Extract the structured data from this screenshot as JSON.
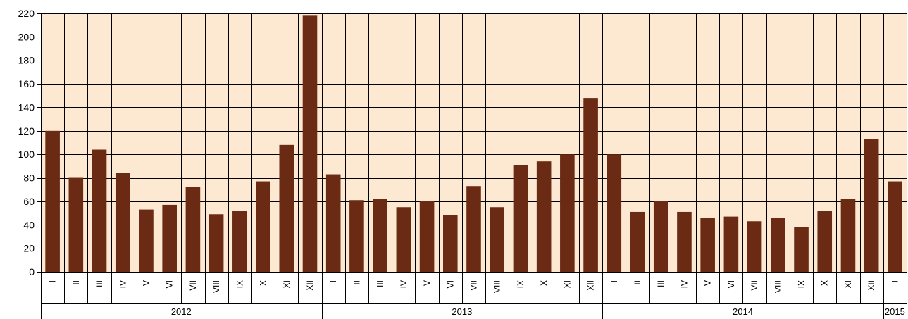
{
  "chart_data": {
    "type": "bar",
    "title": "",
    "xlabel": "",
    "ylabel": "",
    "ylim": [
      0,
      220
    ],
    "yticks": [
      0,
      20,
      40,
      60,
      80,
      100,
      120,
      140,
      160,
      180,
      200,
      220
    ],
    "grid": true,
    "legend": "none",
    "colors": {
      "plot_background": "#fde9d2",
      "bar": "#6b2a14",
      "grid": "#000000"
    },
    "categories": [
      "I",
      "II",
      "III",
      "IV",
      "V",
      "VI",
      "VII",
      "VIII",
      "IX",
      "X",
      "XI",
      "XII",
      "I",
      "II",
      "III",
      "IV",
      "V",
      "VI",
      "VII",
      "VIII",
      "IX",
      "X",
      "XI",
      "XII",
      "I",
      "II",
      "III",
      "IV",
      "V",
      "VI",
      "VII",
      "VIII",
      "IX",
      "X",
      "XI",
      "XII",
      "I"
    ],
    "values": [
      120,
      80,
      104,
      84,
      53,
      57,
      72,
      49,
      52,
      77,
      108,
      218,
      83,
      61,
      62,
      55,
      60,
      48,
      73,
      55,
      91,
      94,
      100,
      148,
      100,
      51,
      60,
      51,
      46,
      47,
      43,
      46,
      38,
      52,
      62,
      113,
      77
    ],
    "groups": [
      {
        "label": "2012",
        "count": 12
      },
      {
        "label": "2013",
        "count": 12
      },
      {
        "label": "2014",
        "count": 12
      },
      {
        "label": "2015",
        "count": 1
      }
    ]
  }
}
